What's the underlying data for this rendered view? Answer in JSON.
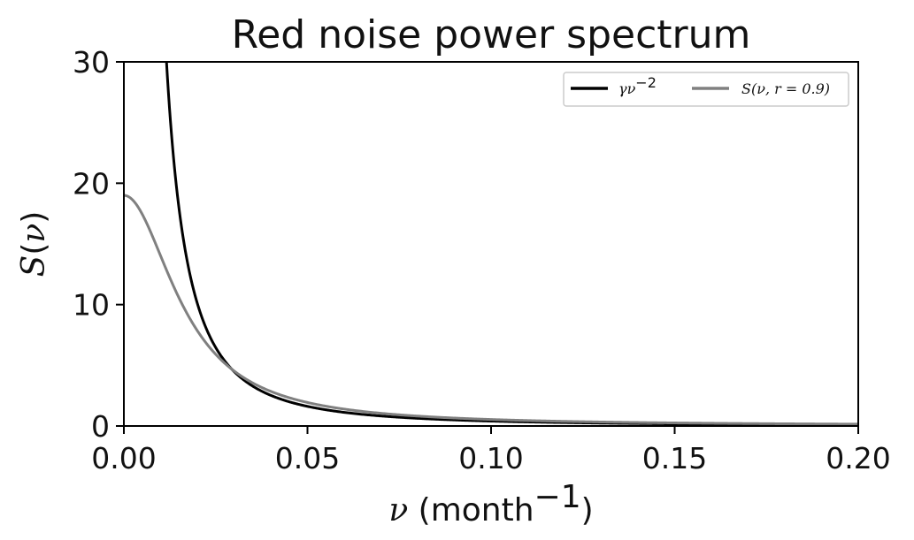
{
  "chart_data": {
    "type": "line",
    "title": "Red noise power spectrum",
    "xlabel": {
      "symbol": "ν",
      "unit_open": " (month",
      "unit_sup": "−1",
      "unit_close": ")"
    },
    "ylabel": {
      "symbol": "S",
      "open": "(",
      "arg": "ν",
      "close": ")"
    },
    "xlim": [
      0,
      0.2
    ],
    "ylim": [
      0,
      30
    ],
    "xticks": [
      0.0,
      0.05,
      0.1,
      0.15,
      0.2
    ],
    "xtick_labels": [
      "0.00",
      "0.05",
      "0.10",
      "0.15",
      "0.20"
    ],
    "yticks": [
      0,
      10,
      20,
      30
    ],
    "ytick_labels": [
      "0",
      "10",
      "20",
      "30"
    ],
    "grid": false,
    "legend_position": "top-right",
    "series": [
      {
        "name": "γν⁻²",
        "legend": {
          "base": "γν",
          "sup": "−2"
        },
        "color": "#000000",
        "formula": "gamma/nu^2",
        "x": [
          0.0116,
          0.0125,
          0.015,
          0.0175,
          0.02,
          0.025,
          0.03,
          0.035,
          0.04,
          0.05,
          0.06,
          0.08,
          0.1,
          0.12,
          0.15,
          0.2
        ],
        "y": [
          30.0,
          25.8,
          17.9,
          13.2,
          10.1,
          6.45,
          4.48,
          3.29,
          2.52,
          1.61,
          1.12,
          0.63,
          0.4,
          0.28,
          0.18,
          0.1
        ]
      },
      {
        "name": "S(ν, r = 0.9)",
        "legend": {
          "func": "S",
          "args": "(ν, r = 0.9)"
        },
        "color": "#808080",
        "formula": "(1-r^2)/(1+r^2-2r cos(2 pi nu))",
        "x": [
          0.0,
          0.005,
          0.01,
          0.015,
          0.02,
          0.025,
          0.03,
          0.035,
          0.04,
          0.05,
          0.06,
          0.08,
          0.1,
          0.12,
          0.15,
          0.2
        ],
        "y": [
          19.0,
          17.58,
          14.37,
          11.03,
          8.33,
          6.35,
          4.92,
          3.91,
          3.17,
          2.2,
          1.62,
          0.99,
          0.68,
          0.5,
          0.35,
          0.23
        ]
      }
    ]
  }
}
